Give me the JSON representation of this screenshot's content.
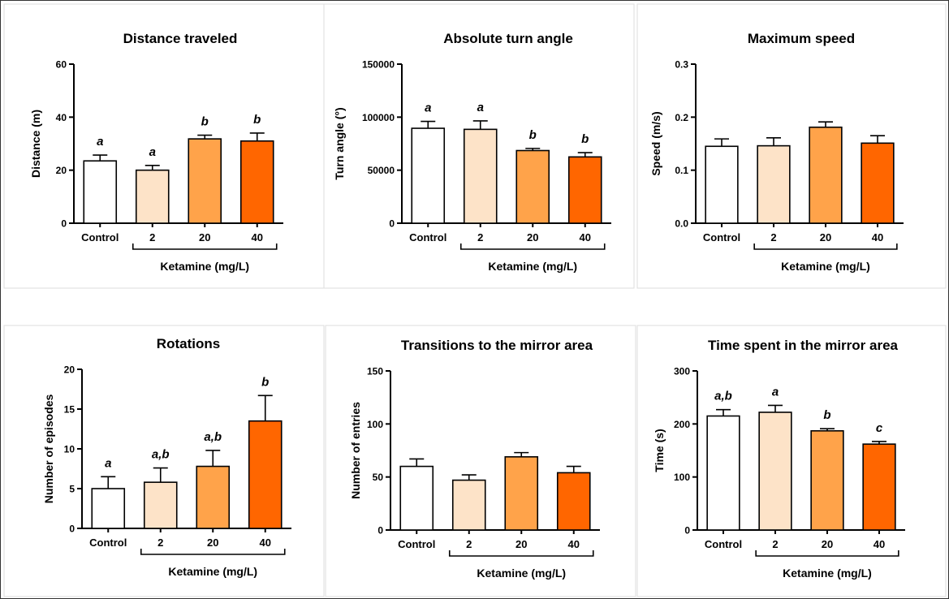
{
  "chart_data": [
    {
      "type": "bar",
      "title": "Distance traveled",
      "ylabel": "Distance (m)",
      "ylim": [
        0,
        60
      ],
      "yticks": [
        0,
        20,
        40,
        60
      ],
      "categories": [
        "Control",
        "2",
        "20",
        "40"
      ],
      "group_label": "Ketamine (mg/L)",
      "values": [
        23.5,
        20.0,
        31.8,
        31.0
      ],
      "errors": [
        2.2,
        1.8,
        1.4,
        3.0
      ],
      "letters": [
        "a",
        "a",
        "b",
        "b"
      ]
    },
    {
      "type": "bar",
      "title": "Absolute turn angle",
      "ylabel": "Turn angle (°)",
      "ylim": [
        0,
        150000
      ],
      "yticks": [
        0,
        50000,
        100000,
        150000
      ],
      "categories": [
        "Control",
        "2",
        "20",
        "40"
      ],
      "group_label": "Ketamine (mg/L)",
      "values": [
        89500,
        88500,
        68500,
        62500
      ],
      "errors": [
        6500,
        8000,
        2000,
        4000
      ],
      "letters": [
        "a",
        "a",
        "b",
        "b"
      ]
    },
    {
      "type": "bar",
      "title": "Maximum speed",
      "ylabel": "Speed (m/s)",
      "ylim": [
        0,
        0.3
      ],
      "yticks": [
        "0.0",
        "0.1",
        "0.2",
        "0.3"
      ],
      "categories": [
        "Control",
        "2",
        "20",
        "40"
      ],
      "group_label": "Ketamine (mg/L)",
      "values": [
        0.145,
        0.146,
        0.181,
        0.151
      ],
      "errors": [
        0.014,
        0.015,
        0.01,
        0.014
      ],
      "letters": [
        "",
        "",
        "",
        ""
      ]
    },
    {
      "type": "bar",
      "title": "Rotations",
      "ylabel": "Number of episodes",
      "ylim": [
        0,
        20
      ],
      "yticks": [
        0,
        5,
        10,
        15,
        20
      ],
      "categories": [
        "Control",
        "2",
        "20",
        "40"
      ],
      "group_label": "Ketamine (mg/L)",
      "values": [
        5.0,
        5.8,
        7.8,
        13.5
      ],
      "errors": [
        1.5,
        1.8,
        2.0,
        3.2
      ],
      "letters": [
        "a",
        "a,b",
        "a,b",
        "b"
      ]
    },
    {
      "type": "bar",
      "title": "Transitions to the mirror area",
      "ylabel": "Number of entries",
      "ylim": [
        0,
        150
      ],
      "yticks": [
        0,
        50,
        100,
        150
      ],
      "categories": [
        "Control",
        "2",
        "20",
        "40"
      ],
      "group_label": "Ketamine (mg/L)",
      "values": [
        60,
        47,
        69,
        54
      ],
      "errors": [
        7,
        5,
        4,
        6
      ],
      "letters": [
        "",
        "",
        "",
        ""
      ]
    },
    {
      "type": "bar",
      "title": "Time spent in the mirror area",
      "ylabel": "Time (s)",
      "ylim": [
        0,
        300
      ],
      "yticks": [
        0,
        100,
        200,
        300
      ],
      "categories": [
        "Control",
        "2",
        "20",
        "40"
      ],
      "group_label": "Ketamine (mg/L)",
      "values": [
        215,
        222,
        187,
        162
      ],
      "errors": [
        12,
        13,
        4,
        5
      ],
      "letters": [
        "a,b",
        "a",
        "b",
        "c"
      ]
    }
  ],
  "colors": {
    "bars": [
      "#ffffff",
      "#fde3c8",
      "#ffa34a",
      "#ff6600"
    ],
    "axis": "#000000",
    "panel_border": "#dddddd"
  }
}
